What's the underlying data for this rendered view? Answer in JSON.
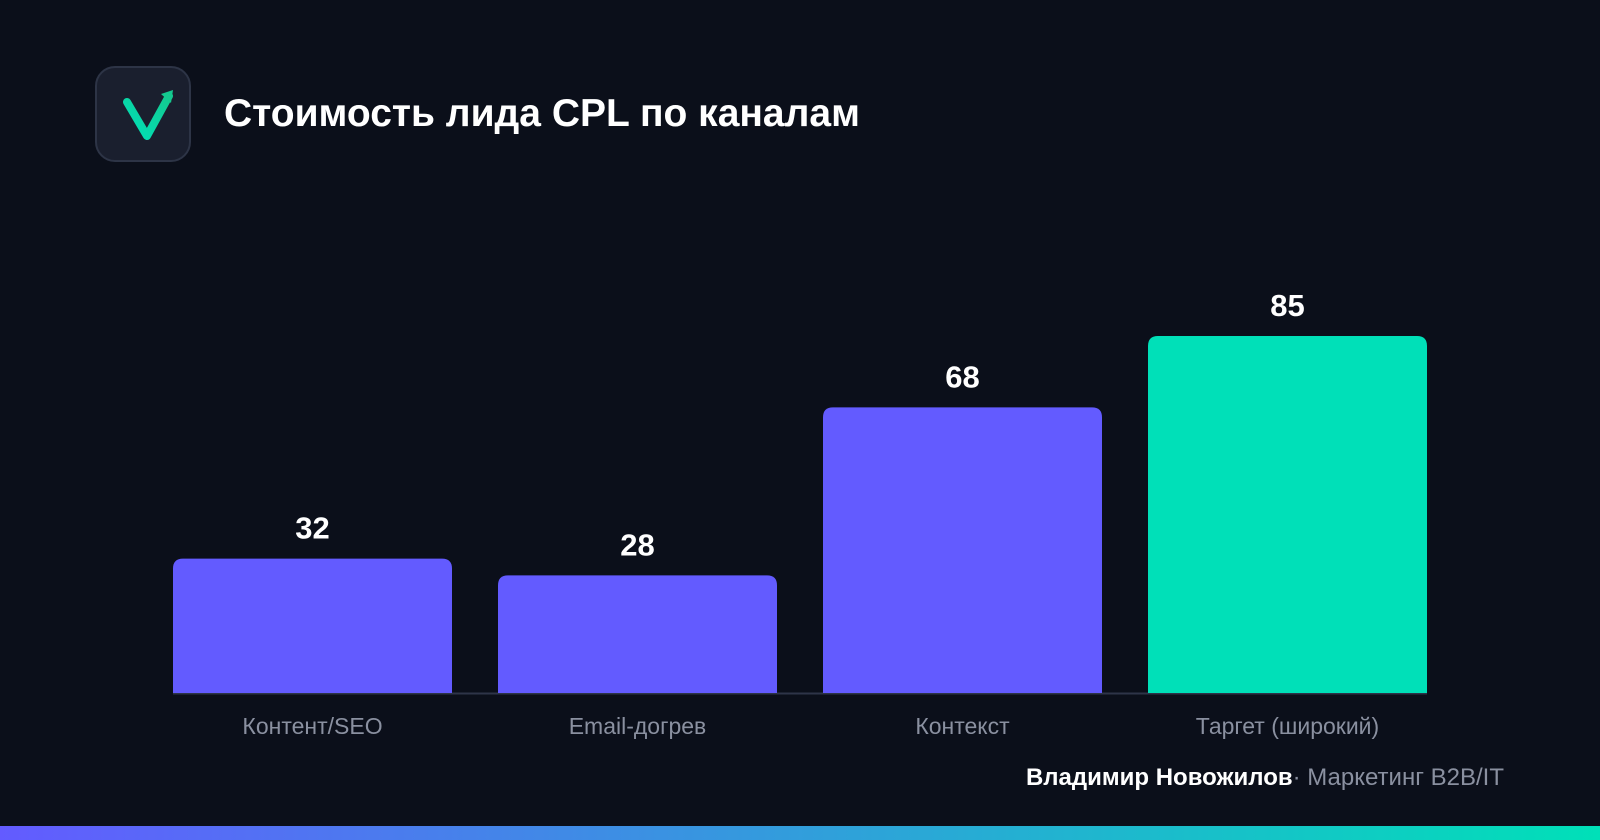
{
  "header": {
    "title": "Стоимость лида CPL по каналам",
    "logo_icon": "checkmark-arrow-icon"
  },
  "footer": {
    "author": "Владимир Новожилов",
    "separator": "·",
    "role": "Маркетинг B2B/IT"
  },
  "colors": {
    "background": "#0b0f1a",
    "bar_primary": "#635bff",
    "bar_highlight": "#00e0b8",
    "accent": "#00e0b8"
  },
  "chart_data": {
    "type": "bar",
    "title": "Стоимость лида CPL по каналам",
    "xlabel": "",
    "ylabel": "",
    "categories": [
      "Контент/SEO",
      "Email-догрев",
      "Контекст",
      "Таргет (широкий)"
    ],
    "values": [
      32,
      28,
      68,
      85
    ],
    "data_labels": [
      "32",
      "28",
      "68",
      "85"
    ],
    "highlight_index": 3,
    "ylim": [
      0,
      85
    ],
    "grid": false,
    "legend": "none"
  }
}
